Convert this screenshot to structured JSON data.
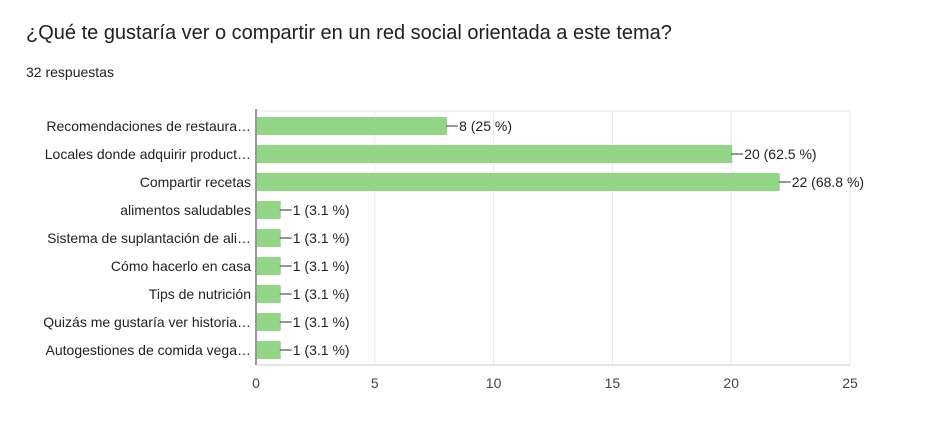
{
  "question": {
    "title": "¿Qué te gustaría ver o compartir en un red social orientada a este tema?",
    "responses": "32 respuestas"
  },
  "chart_data": {
    "type": "bar",
    "orientation": "horizontal",
    "categories": [
      "Recomendaciones de restaura…",
      "Locales donde adquirir product…",
      "Compartir recetas",
      "alimentos saludables",
      "Sistema de suplantación de ali…",
      "Cómo hacerlo en casa",
      "Tips de nutrición",
      "Quizás me gustaría ver historia…",
      "Autogestiones de comida vega…"
    ],
    "values": [
      8,
      20,
      22,
      1,
      1,
      1,
      1,
      1,
      1
    ],
    "data_labels": [
      "8 (25 %)",
      "20 (62.5 %)",
      "22 (68.8 %)",
      "1 (3.1 %)",
      "1 (3.1 %)",
      "1 (3.1 %)",
      "1 (3.1 %)",
      "1 (3.1 %)",
      "1 (3.1 %)"
    ],
    "xticks": [
      "0",
      "5",
      "10",
      "15",
      "20",
      "25"
    ],
    "xlim": [
      0,
      25
    ],
    "grid": true,
    "bar_color": "#93d587",
    "grid_color": "#e8e8e8",
    "axis_color": "#333333"
  }
}
